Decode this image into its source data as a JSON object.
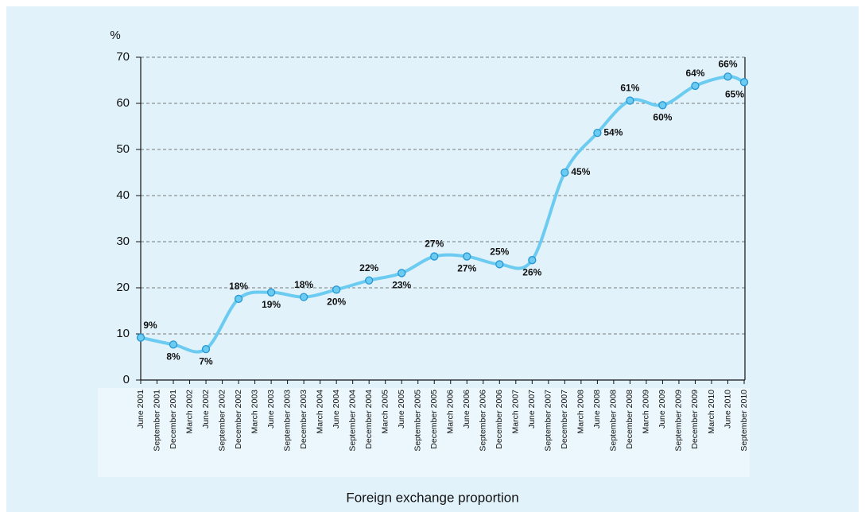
{
  "chart_data": {
    "type": "line",
    "title": "Foreign exchange proportion",
    "y_label": "%",
    "categories": [
      "June 2001",
      "September 2001",
      "December 2001",
      "March 2002",
      "June 2002",
      "September 2002",
      "December 2002",
      "March 2003",
      "June 2003",
      "September 2003",
      "December 2003",
      "March 2004",
      "June 2004",
      "September 2004",
      "December 2004",
      "March 2005",
      "June 2005",
      "September 2005",
      "December 2005",
      "March 2006",
      "June 2006",
      "September 2006",
      "December 2006",
      "March 2007",
      "June 2007",
      "September 2007",
      "December 2007",
      "March 2008",
      "June 2008",
      "September 2008",
      "December 2008",
      "March 2009",
      "June 2009",
      "September 2009",
      "December 2009",
      "March 2010",
      "June 2010",
      "September 2010"
    ],
    "x": [
      "June 2001",
      "December 2001",
      "June 2002",
      "December 2002",
      "June 2003",
      "December 2003",
      "June 2004",
      "December 2004",
      "June 2005",
      "December 2005",
      "June 2006",
      "December 2006",
      "June 2007",
      "December 2007",
      "June 2008",
      "December 2008",
      "June 2009",
      "December 2009",
      "June 2010",
      "September 2010"
    ],
    "values": [
      9.2,
      7.7,
      6.7,
      17.6,
      19,
      18,
      19.6,
      21.6,
      23.2,
      26.8,
      26.8,
      25.1,
      26,
      45,
      53.6,
      60.6,
      59.6,
      63.8,
      65.8,
      64.6
    ],
    "value_labels": [
      "9%",
      "8%",
      "7%",
      "18%",
      "19%",
      "18%",
      "20%",
      "22%",
      "23%",
      "27%",
      "27%",
      "25%",
      "26%",
      "45%",
      "54%",
      "61%",
      "60%",
      "64%",
      "66%",
      "65%"
    ],
    "color": "#6ccbf0",
    "ylim": [
      0,
      70
    ],
    "yticks": [
      0,
      10,
      20,
      30,
      40,
      50,
      60,
      70
    ],
    "grid": true
  }
}
